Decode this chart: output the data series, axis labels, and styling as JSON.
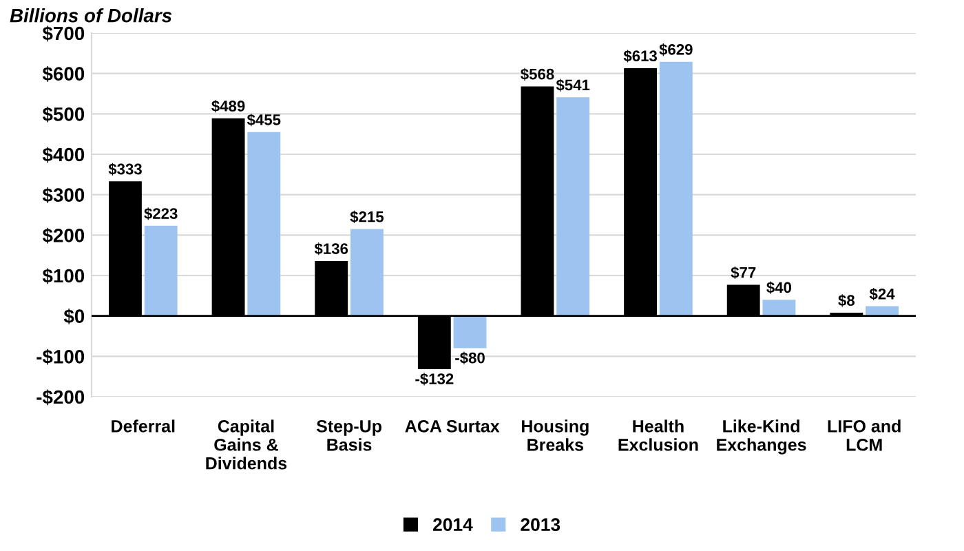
{
  "chart_data": {
    "type": "bar",
    "ylabel": "Billions of Dollars",
    "categories": [
      "Deferral",
      "Capital\nGains &\nDividends",
      "Step-Up\nBasis",
      "ACA Surtax",
      "Housing\nBreaks",
      "Health\nExclusion",
      "Like-Kind\nExchanges",
      "LIFO and\nLCM"
    ],
    "series": [
      {
        "name": "2014",
        "color": "#000000",
        "values": [
          333,
          489,
          136,
          -132,
          568,
          613,
          77,
          8
        ],
        "value_labels": [
          "$333",
          "$489",
          "$136",
          "-$132",
          "$568",
          "$613",
          "$77",
          "$8"
        ]
      },
      {
        "name": "2013",
        "color": "#9dc3f0",
        "values": [
          223,
          455,
          215,
          -80,
          541,
          629,
          40,
          24
        ],
        "value_labels": [
          "$223",
          "$455",
          "$215",
          "-$80",
          "$541",
          "$629",
          "$40",
          "$24"
        ]
      }
    ],
    "ylim": [
      -200,
      700
    ],
    "yticks": [
      {
        "value": -200,
        "label": "-$200"
      },
      {
        "value": -100,
        "label": "-$100"
      },
      {
        "value": 0,
        "label": "$0"
      },
      {
        "value": 100,
        "label": "$100"
      },
      {
        "value": 200,
        "label": "$200"
      },
      {
        "value": 300,
        "label": "$300"
      },
      {
        "value": 400,
        "label": "$400"
      },
      {
        "value": 500,
        "label": "$500"
      },
      {
        "value": 600,
        "label": "$600"
      },
      {
        "value": 700,
        "label": "$700"
      }
    ],
    "grid": "y",
    "legend": "bottom"
  }
}
